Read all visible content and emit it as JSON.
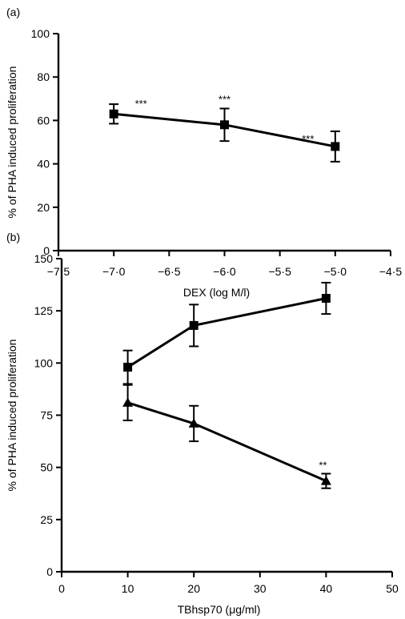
{
  "chart_data": [
    {
      "panel_label": "(a)",
      "type": "line",
      "xlabel": "DEX (log M/l)",
      "ylabel": "% of PHA induced proliferation",
      "xlim": [
        -7.5,
        -4.5
      ],
      "ylim": [
        0,
        100
      ],
      "xticks": [
        "−7·5",
        "−7·0",
        "−6·5",
        "−6·0",
        "−5·5",
        "−5·0",
        "−4·5"
      ],
      "yticks": [
        "0",
        "20",
        "40",
        "60",
        "80",
        "100"
      ],
      "grid": false,
      "series": [
        {
          "marker": "square",
          "points": [
            {
              "x": -7.0,
              "y": 63,
              "err": 4.5,
              "annotation": "***"
            },
            {
              "x": -6.0,
              "y": 58,
              "err": 7.5,
              "annotation": "***"
            },
            {
              "x": -5.0,
              "y": 48,
              "err": 7.0,
              "annotation": "***"
            }
          ]
        }
      ]
    },
    {
      "panel_label": "(b)",
      "type": "line",
      "xlabel": "TBhsp70 (μg/ml)",
      "ylabel": "% of PHA induced proliferation",
      "xlim": [
        0,
        50
      ],
      "ylim": [
        0,
        150
      ],
      "xticks": [
        "0",
        "10",
        "20",
        "30",
        "40",
        "50"
      ],
      "yticks": [
        "0",
        "25",
        "50",
        "75",
        "100",
        "125",
        "150"
      ],
      "grid": false,
      "series": [
        {
          "marker": "square",
          "points": [
            {
              "x": 10,
              "y": 98,
              "err": 8,
              "annotation": ""
            },
            {
              "x": 20,
              "y": 118,
              "err": 10,
              "annotation": ""
            },
            {
              "x": 40,
              "y": 131,
              "err": 7.5,
              "annotation": ""
            }
          ]
        },
        {
          "marker": "triangle",
          "points": [
            {
              "x": 10,
              "y": 81,
              "err": 8.5,
              "annotation": ""
            },
            {
              "x": 20,
              "y": 71,
              "err": 8.5,
              "annotation": ""
            },
            {
              "x": 40,
              "y": 43.5,
              "err": 3.5,
              "annotation": "**"
            }
          ]
        }
      ]
    }
  ]
}
